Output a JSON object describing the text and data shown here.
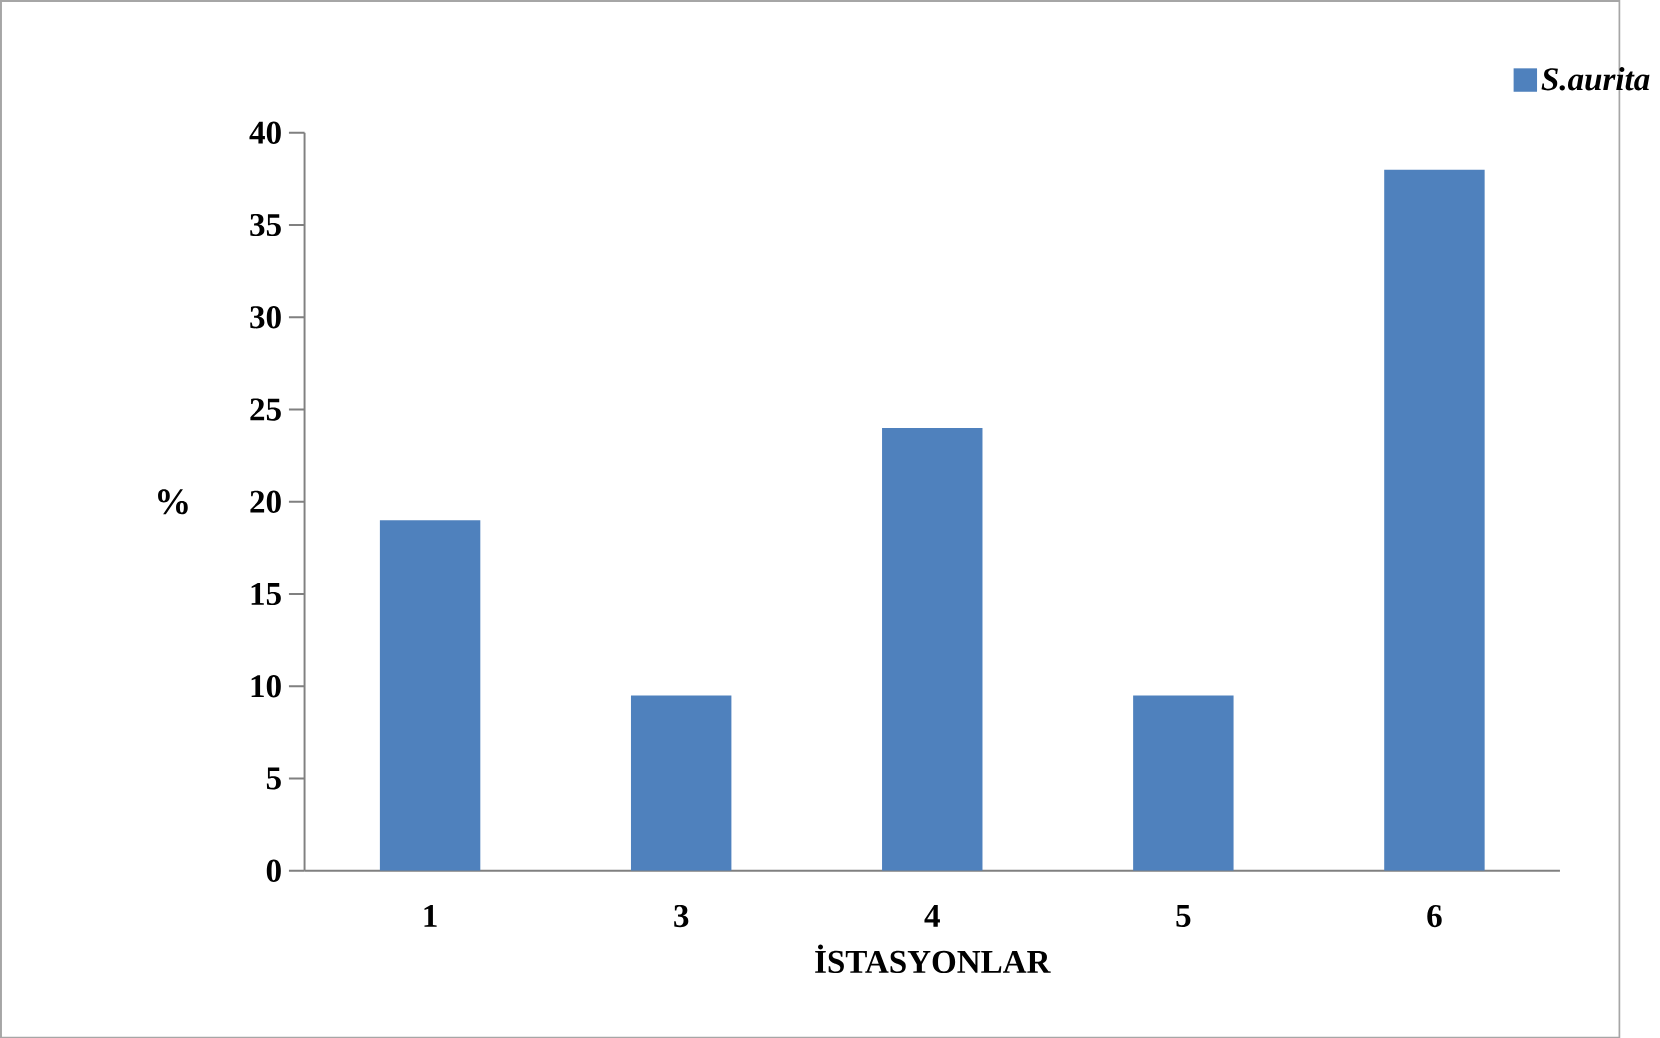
{
  "chart_data": {
    "type": "bar",
    "xlabel": "İSTASYONLAR",
    "ylabel": "%",
    "categories": [
      "1",
      "3",
      "4",
      "5",
      "6"
    ],
    "series": [
      {
        "name": "S.aurita",
        "color": "#4f81bd",
        "values": [
          19,
          9.5,
          24,
          9.5,
          38
        ]
      }
    ],
    "ylim": [
      0,
      40
    ],
    "yticks": [
      0,
      5,
      10,
      15,
      20,
      25,
      30,
      35,
      40
    ],
    "grid": false,
    "legend": "top right"
  }
}
